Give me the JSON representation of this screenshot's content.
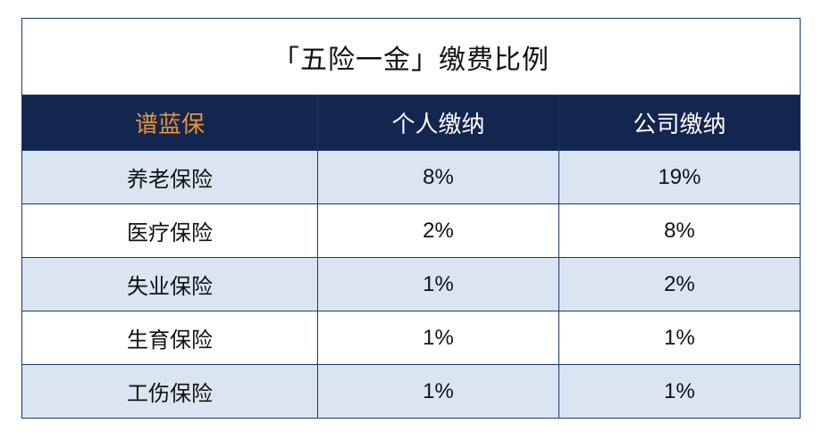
{
  "table": {
    "title": "「五险一金」缴费比例",
    "title_fontsize": 30,
    "title_color": "#111111",
    "title_bg": "#ffffff",
    "border_color": "#153a6b",
    "header_bg": "#12264f",
    "header_text_color": "#ffffff",
    "brand_color": "#e9933a",
    "row_even_bg": "#dbe5f1",
    "row_odd_bg": "#ffffff",
    "cell_fontsize": 24,
    "header_fontsize": 26,
    "columns": [
      {
        "key": "name",
        "label": "谱蓝保",
        "is_brand": true,
        "width_pct": 38
      },
      {
        "key": "personal",
        "label": "个人缴纳",
        "is_brand": false,
        "width_pct": 31
      },
      {
        "key": "company",
        "label": "公司缴纳",
        "is_brand": false,
        "width_pct": 31
      }
    ],
    "rows": [
      {
        "name": "养老保险",
        "personal": "8%",
        "company": "19%"
      },
      {
        "name": "医疗保险",
        "personal": "2%",
        "company": "8%"
      },
      {
        "name": "失业保险",
        "personal": "1%",
        "company": "2%"
      },
      {
        "name": "生育保险",
        "personal": "1%",
        "company": "1%"
      },
      {
        "name": "工伤保险",
        "personal": "1%",
        "company": "1%"
      }
    ]
  }
}
